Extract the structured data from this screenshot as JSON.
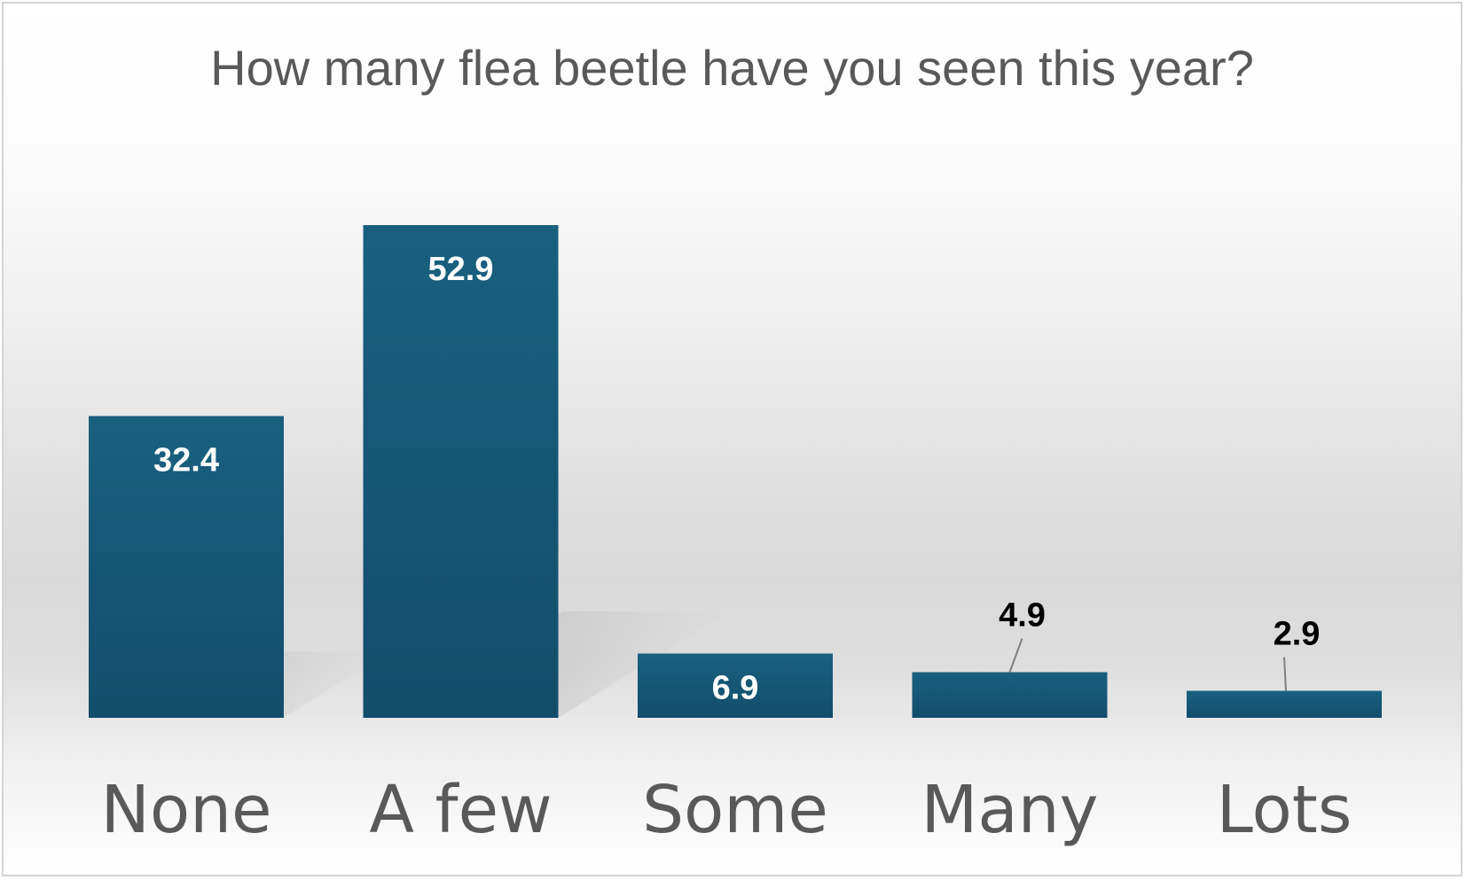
{
  "chart_data": {
    "type": "bar",
    "title": "How many flea beetle have you seen this year?",
    "categories": [
      "None",
      "A few",
      "Some",
      "Many",
      "Lots"
    ],
    "values": [
      32.4,
      52.9,
      6.9,
      4.9,
      2.9
    ],
    "value_labels": [
      "32.4",
      "52.9",
      "6.9",
      "4.9",
      "2.9"
    ],
    "label_position": [
      "inside",
      "inside",
      "inside",
      "outside",
      "outside"
    ],
    "xlabel": "",
    "ylabel": "",
    "ylim": [
      0,
      52.9
    ],
    "grid": false,
    "legend": "none",
    "bar_color": "#175b7e",
    "inside_label_color": "#ffffff",
    "outside_label_color": "#000000"
  }
}
